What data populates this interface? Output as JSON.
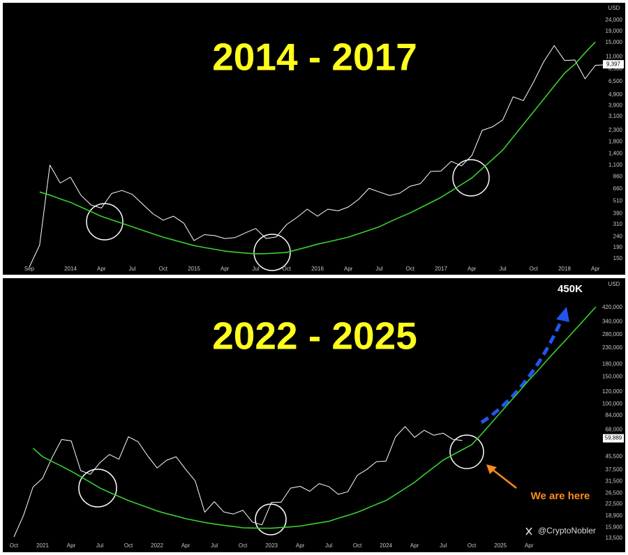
{
  "chart_data": [
    {
      "type": "line",
      "title": "2014 - 2017",
      "y_axis_label": "USD",
      "yscale": "log",
      "grid": false,
      "categories": [
        "Sep",
        null,
        null,
        null,
        "2014",
        null,
        null,
        "Apr",
        null,
        null,
        "Jul",
        null,
        null,
        "Oct",
        null,
        null,
        "2015",
        null,
        null,
        "Apr",
        null,
        null,
        "Jul",
        null,
        null,
        "Oct",
        null,
        null,
        "2016",
        null,
        null,
        "Apr",
        null,
        null,
        "Jul",
        null,
        null,
        "Oct",
        null,
        null,
        "2017",
        null,
        null,
        "Apr",
        null,
        null,
        "Jul",
        null,
        null,
        "Oct",
        null,
        null,
        "2018",
        null,
        null,
        "Apr",
        null
      ],
      "series": [
        {
          "color": "#ffffff",
          "values": [
            125,
            200,
            1100,
            750,
            850,
            580,
            470,
            440,
            600,
            640,
            590,
            480,
            390,
            340,
            370,
            320,
            220,
            250,
            245,
            230,
            235,
            260,
            285,
            230,
            238,
            310,
            360,
            430,
            370,
            430,
            415,
            450,
            530,
            670,
            620,
            575,
            605,
            700,
            740,
            960,
            970,
            1190,
            1080,
            1350,
            2300,
            2480,
            2870,
            4700,
            4340,
            6470,
            10000,
            14000,
            10200,
            10300,
            6900,
            9200,
            9300
          ]
        },
        {
          "color": "#39d12f",
          "values": [
            null,
            620,
            580,
            535,
            497,
            450,
            408,
            369,
            343,
            318,
            295,
            274,
            255,
            237,
            223,
            210,
            198,
            190,
            183,
            176,
            172,
            169,
            166,
            167,
            169,
            171,
            181,
            192,
            204,
            214,
            225,
            237,
            255,
            274,
            295,
            328,
            361,
            397,
            443,
            495,
            552,
            634,
            728,
            836,
            1020,
            1240,
            1514,
            1990,
            2610,
            3430,
            4510,
            5920,
            7770,
            9400,
            12000,
            15140,
            null
          ]
        }
      ],
      "last_price": {
        "value": 9397,
        "label": "9,397"
      },
      "ylim": [
        135,
        34300
      ],
      "yticks": [
        {
          "value": 24000,
          "label": "24,000"
        },
        {
          "value": 19000,
          "label": "19,000"
        },
        {
          "value": 15000,
          "label": "15,000"
        },
        {
          "value": 11000,
          "label": "11,000"
        },
        {
          "value": 8500,
          "label": "8,500"
        },
        {
          "value": 6500,
          "label": "6,500"
        },
        {
          "value": 4900,
          "label": "4,900"
        },
        {
          "value": 3900,
          "label": "3,900"
        },
        {
          "value": 3100,
          "label": "3,100"
        },
        {
          "value": 2300,
          "label": "2,300"
        },
        {
          "value": 1800,
          "label": "1,800"
        },
        {
          "value": 1400,
          "label": "1,400"
        },
        {
          "value": 1100,
          "label": "1,100"
        },
        860,
        660,
        510,
        390,
        310,
        240,
        190,
        150
      ]
    },
    {
      "type": "line",
      "title": "2022 - 2025",
      "y_axis_label": "USD",
      "yscale": "log",
      "grid": false,
      "categories": [
        "Oct",
        null,
        null,
        "2021",
        null,
        null,
        "Apr",
        null,
        null,
        "Jul",
        null,
        null,
        "Oct",
        null,
        null,
        "2022",
        null,
        null,
        "Apr",
        null,
        null,
        "Jul",
        null,
        null,
        "Oct",
        null,
        null,
        "2023",
        null,
        null,
        "Apr",
        null,
        null,
        "Jul",
        null,
        null,
        "Oct",
        null,
        null,
        "2024",
        null,
        null,
        "Apr",
        null,
        null,
        "Jul",
        null,
        null,
        "Oct",
        null,
        null,
        "2025",
        null,
        null,
        "Apr",
        null,
        null,
        null,
        null,
        null,
        null,
        null
      ],
      "series": [
        {
          "color": "#ffffff",
          "values": [
            13800,
            19000,
            29000,
            33000,
            45000,
            58800,
            57700,
            37000,
            35000,
            41500,
            47100,
            43800,
            61300,
            57000,
            46300,
            38500,
            43200,
            45500,
            37700,
            31800,
            19900,
            23300,
            20000,
            19400,
            20500,
            17200,
            16500,
            23100,
            23100,
            28500,
            29300,
            27200,
            30500,
            29200,
            26000,
            27000,
            34500,
            37700,
            42300,
            42600,
            61200,
            71300,
            60700,
            67500,
            62700,
            64600,
            59000,
            58000,
            null,
            null,
            null,
            null,
            null,
            null,
            null,
            null,
            null,
            null,
            null,
            null,
            null,
            null
          ]
        },
        {
          "color": "#39d12f",
          "values": [
            null,
            null,
            51700,
            45600,
            42400,
            39500,
            36700,
            33800,
            31100,
            28600,
            26800,
            25200,
            23700,
            22500,
            21400,
            20300,
            19500,
            18800,
            18100,
            17600,
            17100,
            16700,
            16400,
            16100,
            15800,
            15750,
            15700,
            15700,
            15850,
            16000,
            16200,
            16600,
            17000,
            17400,
            18200,
            19000,
            19900,
            21100,
            22400,
            23700,
            25900,
            28400,
            31100,
            34800,
            38800,
            43300,
            46800,
            50500,
            54500,
            63500,
            74600,
            87700,
            103000,
            121000,
            143000,
            166000,
            195000,
            228000,
            265000,
            310000,
            362000,
            424000
          ]
        }
      ],
      "last_price": {
        "value": 59889,
        "label": "59,889"
      },
      "ylim": [
        13100,
        643000
      ],
      "yticks": [
        {
          "value": 420000,
          "label": "420,000"
        },
        {
          "value": 340000,
          "label": "340,000"
        },
        {
          "value": 280000,
          "label": "280,000"
        },
        {
          "value": 230000,
          "label": "230,000"
        },
        {
          "value": 180000,
          "label": "180,000"
        },
        {
          "value": 150000,
          "label": "150,000"
        },
        {
          "value": 120000,
          "label": "120,000"
        },
        {
          "value": 100000,
          "label": "100,000"
        },
        {
          "value": 84000,
          "label": "84,000"
        },
        {
          "value": 68000,
          "label": "68,000"
        },
        {
          "value": 45500,
          "label": "45,500"
        },
        {
          "value": 37500,
          "label": "37,500"
        },
        {
          "value": 31500,
          "label": "31,500"
        },
        {
          "value": 26500,
          "label": "26,500"
        },
        {
          "value": 22500,
          "label": "22,500"
        },
        {
          "value": 18900,
          "label": "18,900"
        },
        {
          "value": 15900,
          "label": "15,900"
        },
        {
          "value": 13500,
          "label": "13,500"
        }
      ],
      "annotations": {
        "target": "450K",
        "note": "We are here",
        "credit": "@CryptoNobler"
      }
    }
  ]
}
